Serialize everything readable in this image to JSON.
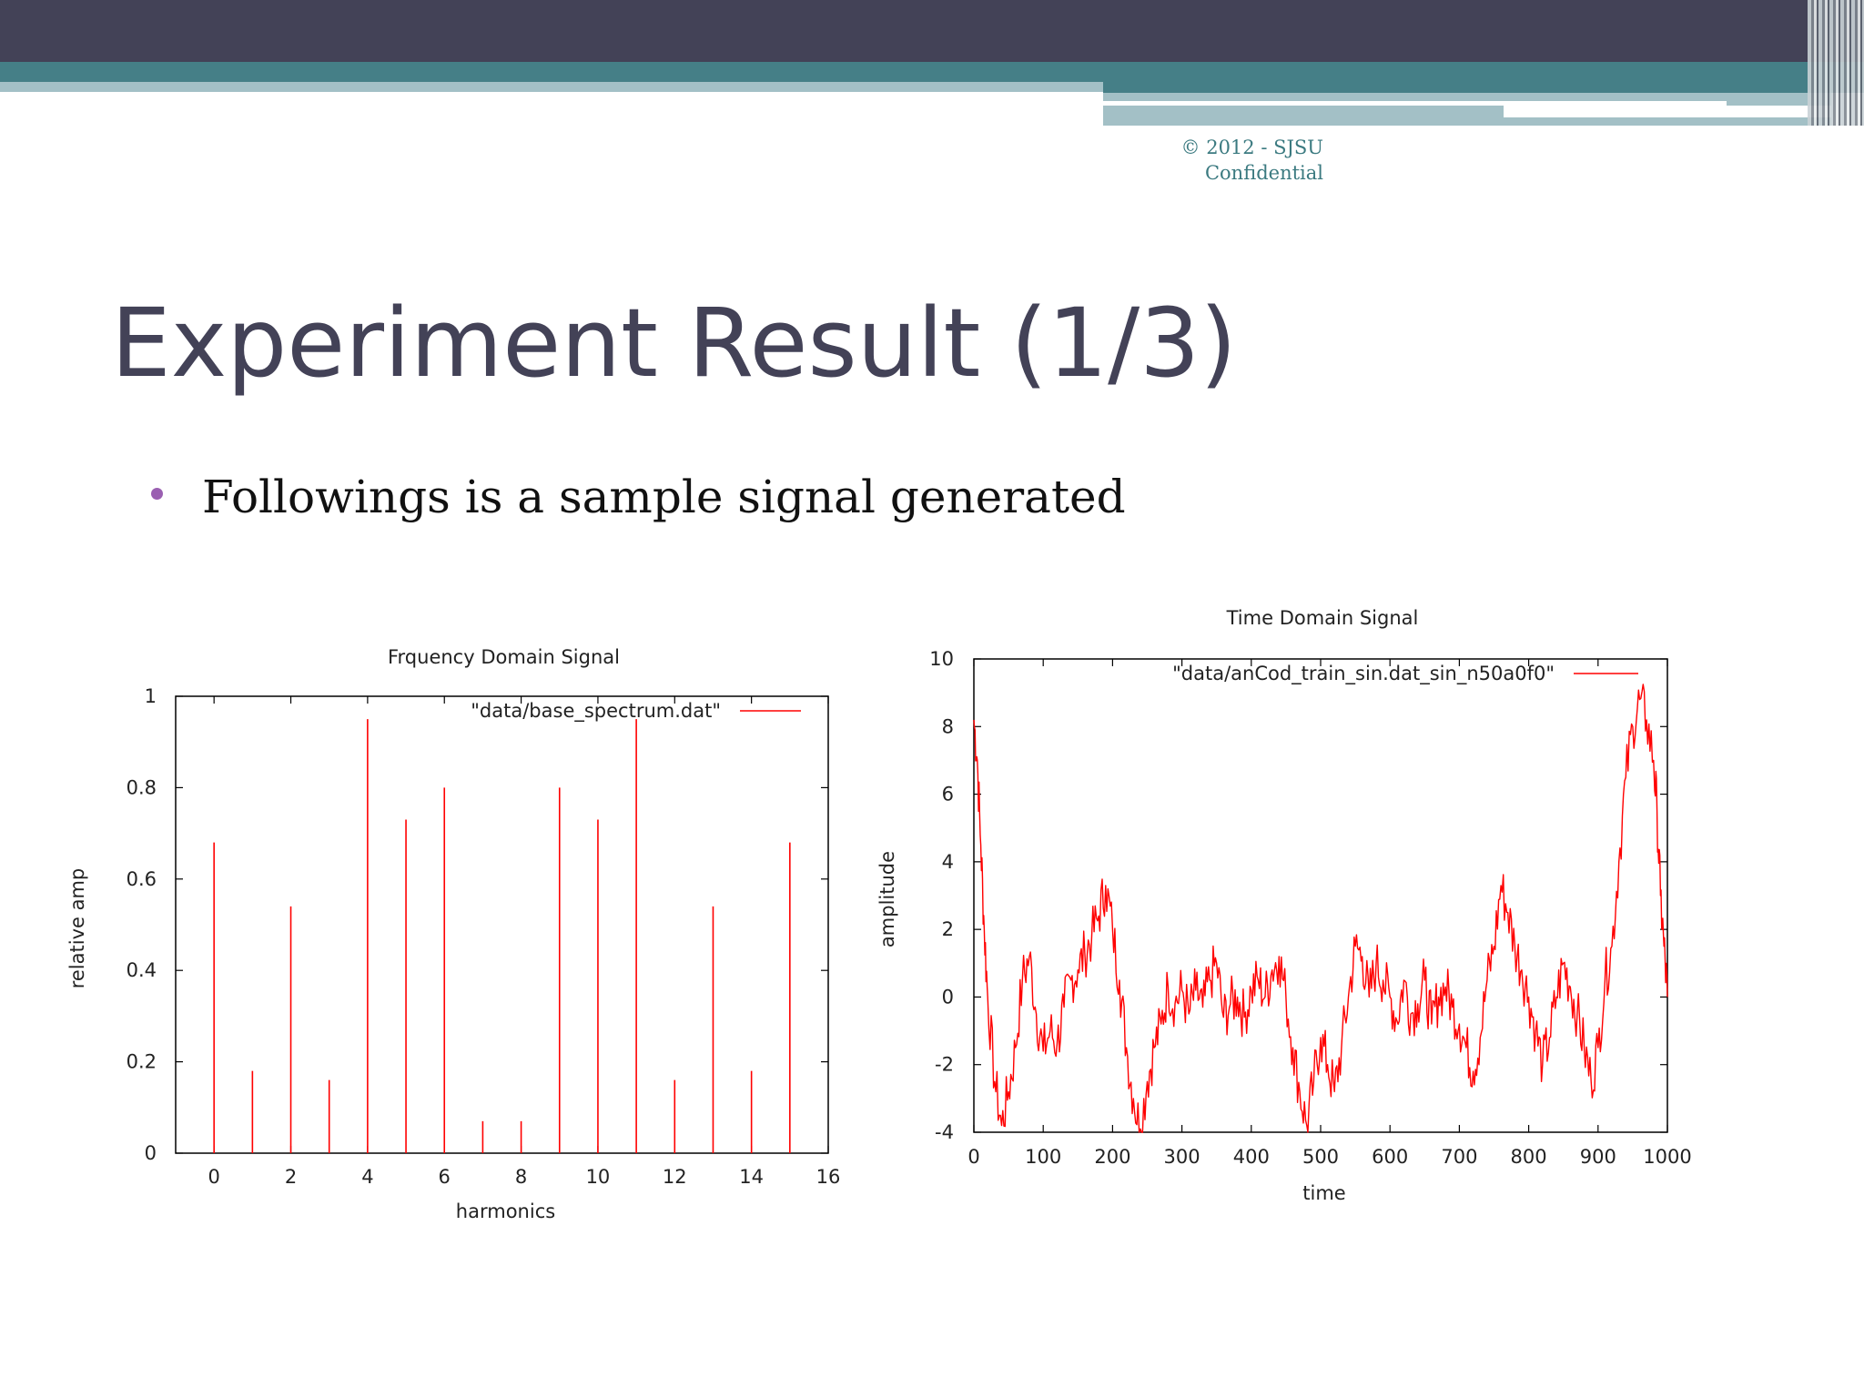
{
  "header": {
    "copyright_line1": "© 2012 - SJSU",
    "copyright_line2": "Confidential"
  },
  "slide": {
    "title": "Experiment Result (1/3)",
    "bullet": "Followings is a sample signal generated"
  },
  "colors": {
    "title": "#434257",
    "bullet": "#9a5fb1",
    "series": "#ff0000",
    "accent": "#457f87"
  },
  "chart_data": [
    {
      "type": "bar",
      "title": "Frquency Domain Signal",
      "xlabel": "harmonics",
      "ylabel": "relative amp",
      "xlim": [
        -1,
        16
      ],
      "ylim": [
        0,
        1
      ],
      "xticks": [
        0,
        2,
        4,
        6,
        8,
        10,
        12,
        14,
        16
      ],
      "yticks": [
        0,
        0.2,
        0.4,
        0.6,
        0.8,
        1
      ],
      "legend_position": "top-right",
      "grid": false,
      "series": [
        {
          "name": "\"data/base_spectrum.dat\"",
          "x": [
            0,
            1,
            2,
            3,
            4,
            5,
            6,
            7,
            8,
            9,
            10,
            11,
            12,
            13,
            14,
            15
          ],
          "values": [
            0.68,
            0.18,
            0.54,
            0.16,
            0.95,
            0.73,
            0.8,
            0.07,
            0.07,
            0.8,
            0.73,
            0.95,
            0.16,
            0.54,
            0.18,
            0.68
          ]
        }
      ]
    },
    {
      "type": "line",
      "title": "Time Domain Signal",
      "xlabel": "time",
      "ylabel": "amplitude",
      "xlim": [
        0,
        1000
      ],
      "ylim": [
        -4,
        10
      ],
      "xticks": [
        0,
        100,
        200,
        300,
        400,
        500,
        600,
        700,
        800,
        900,
        1000
      ],
      "yticks": [
        -4,
        -2,
        0,
        2,
        4,
        6,
        8,
        10
      ],
      "legend_position": "top-right",
      "grid": false,
      "series": [
        {
          "name": "\"data/anCod_train_sin.dat_sin_n50a0f0\"",
          "x": [
            0,
            5,
            10,
            15,
            20,
            30,
            40,
            50,
            60,
            70,
            80,
            90,
            100,
            110,
            120,
            130,
            140,
            150,
            160,
            170,
            180,
            190,
            200,
            210,
            220,
            230,
            240,
            250,
            260,
            270,
            280,
            290,
            300,
            310,
            320,
            330,
            340,
            350,
            360,
            370,
            380,
            390,
            400,
            410,
            420,
            430,
            440,
            450,
            460,
            470,
            480,
            490,
            500,
            510,
            520,
            530,
            540,
            550,
            560,
            570,
            580,
            590,
            600,
            610,
            620,
            630,
            640,
            650,
            660,
            670,
            680,
            690,
            700,
            710,
            720,
            730,
            740,
            750,
            760,
            770,
            780,
            790,
            800,
            810,
            820,
            830,
            840,
            850,
            860,
            870,
            880,
            890,
            900,
            910,
            920,
            930,
            940,
            950,
            960,
            970,
            980,
            985,
            990,
            995,
            1000
          ],
          "values": [
            8.2,
            7.0,
            4.5,
            2.0,
            0.0,
            -2.5,
            -3.8,
            -2.8,
            -1.5,
            0.5,
            1.2,
            -0.5,
            -1.6,
            -1.0,
            -1.4,
            -0.3,
            0.5,
            0.8,
            1.3,
            1.8,
            2.4,
            3.3,
            2.0,
            0.5,
            -1.5,
            -3.0,
            -3.9,
            -2.5,
            -1.5,
            -0.8,
            0.3,
            -0.2,
            0.2,
            -0.5,
            0.2,
            -0.3,
            0.5,
            1.0,
            -0.6,
            -0.2,
            0.0,
            -0.6,
            0.2,
            0.5,
            0.0,
            0.8,
            1.2,
            0.0,
            -1.5,
            -2.8,
            -3.8,
            -2.5,
            -1.2,
            -2.0,
            -2.8,
            -1.5,
            0.0,
            1.5,
            1.2,
            0.0,
            1.0,
            0.5,
            0.0,
            -0.7,
            0.5,
            -0.5,
            -0.2,
            0.5,
            -0.8,
            0.0,
            0.3,
            -0.3,
            -0.8,
            -1.5,
            -2.2,
            -1.2,
            0.5,
            1.5,
            3.3,
            2.5,
            1.5,
            0.8,
            0.0,
            -1.0,
            -2.0,
            -1.2,
            0.0,
            1.0,
            0.3,
            -0.5,
            -1.5,
            -2.5,
            -1.5,
            0.5,
            1.5,
            4.0,
            6.5,
            8.0,
            8.8,
            8.2,
            7.0,
            5.5,
            3.0,
            1.5,
            0.0
          ]
        }
      ]
    }
  ]
}
